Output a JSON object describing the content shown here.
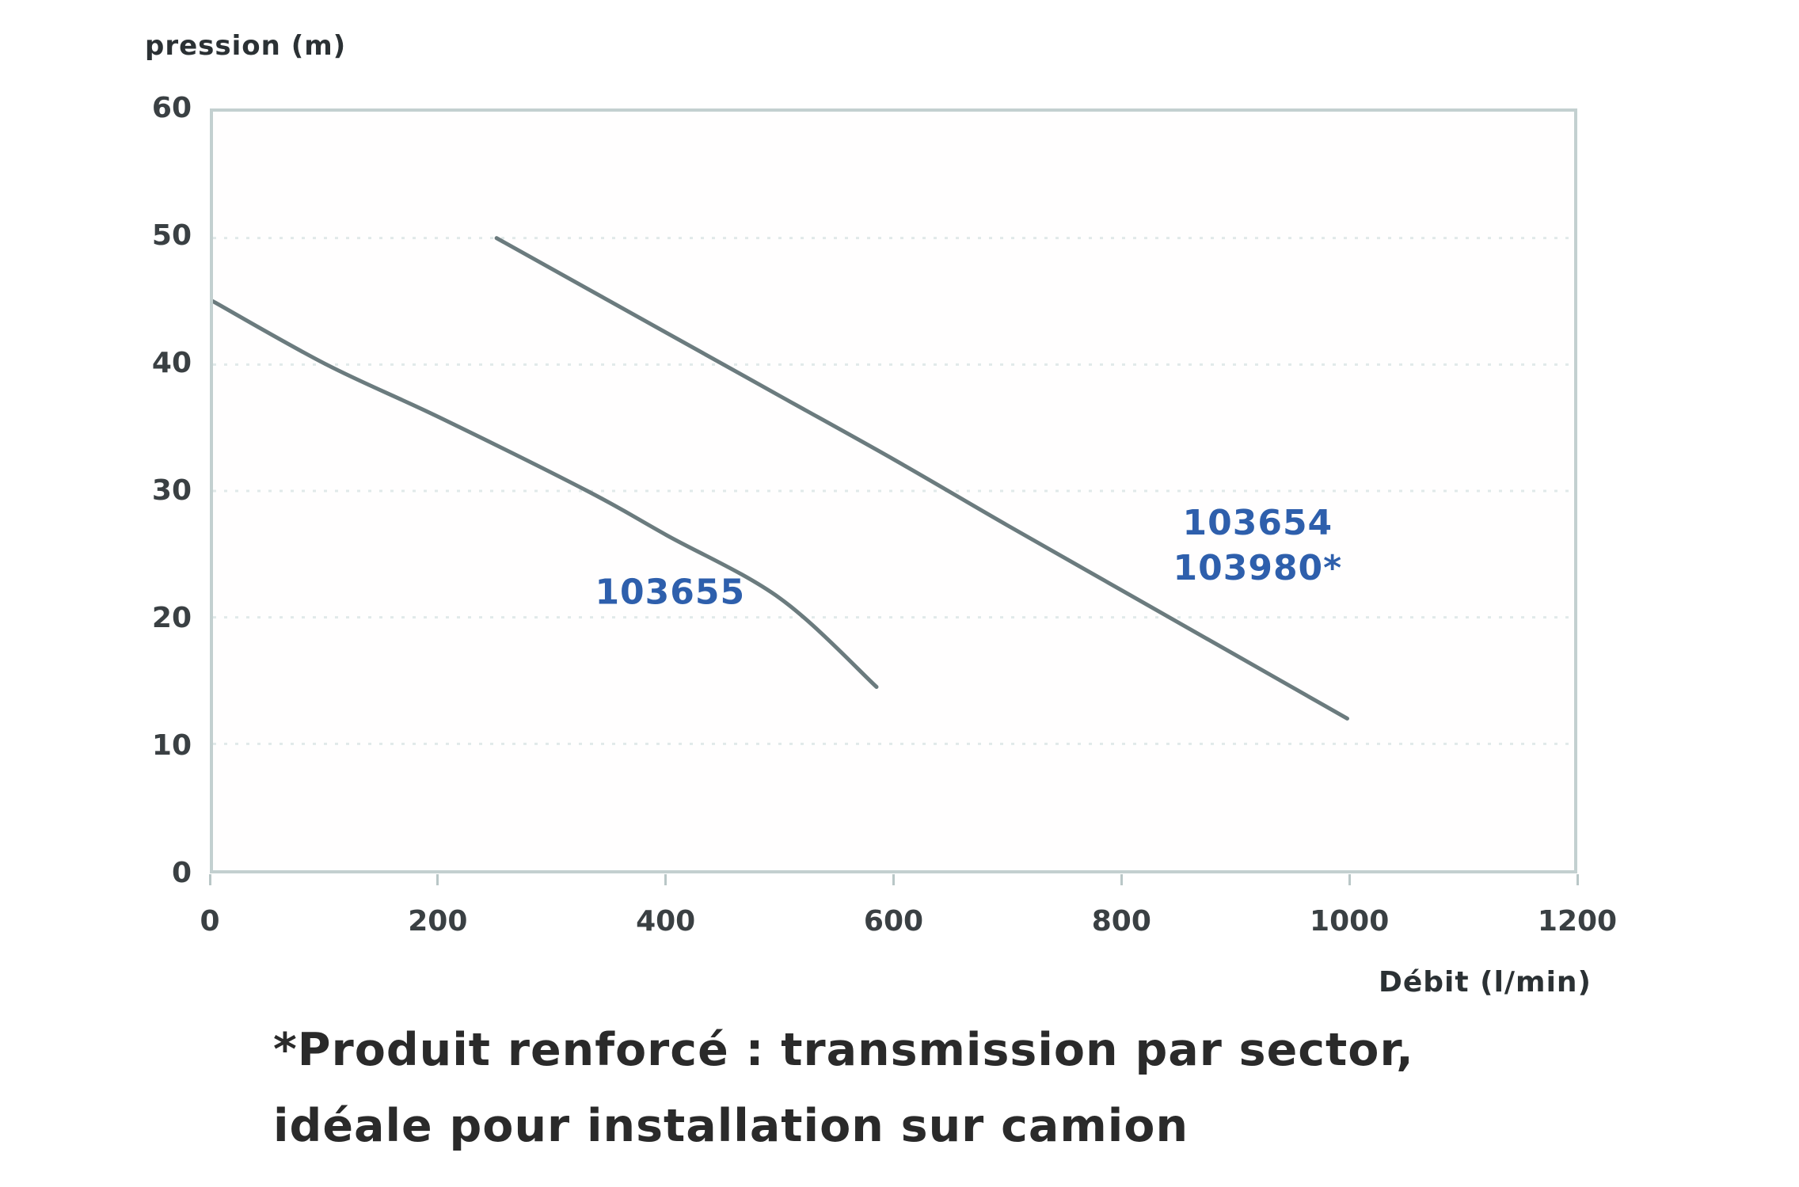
{
  "chart_data": {
    "type": "line",
    "title": "",
    "ylabel": "pression (m)",
    "xlabel": "Débit (l/min)",
    "xlim": [
      0,
      1200
    ],
    "ylim": [
      0,
      60
    ],
    "xticks": [
      0,
      200,
      400,
      600,
      800,
      1000,
      1200
    ],
    "yticks": [
      0,
      10,
      20,
      30,
      40,
      50,
      60
    ],
    "grid": "horizontal dotted lines at each y tick, no vertical gridlines",
    "legend_position": "inline annotations inside plot",
    "series": [
      {
        "name": "103655",
        "color": "#6b7b7e",
        "points": [
          [
            0,
            45
          ],
          [
            100,
            40
          ],
          [
            200,
            35.8
          ],
          [
            330,
            30
          ],
          [
            400,
            26.5
          ],
          [
            500,
            21.5
          ],
          [
            585,
            14.5
          ]
        ]
      },
      {
        "name": "103654 / 103980*",
        "color": "#6b7b7e",
        "points": [
          [
            250,
            50
          ],
          [
            400,
            42.5
          ],
          [
            500,
            37.5
          ],
          [
            600,
            32.5
          ],
          [
            700,
            27.3
          ],
          [
            800,
            22.2
          ],
          [
            900,
            17.1
          ],
          [
            1000,
            12
          ]
        ]
      }
    ],
    "annotations": [
      {
        "lines": [
          "103655"
        ],
        "x": 403,
        "y": 22,
        "color": "#2e5fac"
      },
      {
        "lines": [
          "103654",
          "103980*"
        ],
        "x": 921,
        "y": 25.7,
        "color": "#2e5fac"
      }
    ]
  },
  "footnote": {
    "line1": "*Produit renforcé : transmission par sector,",
    "line2": "idéale pour installation sur camion"
  },
  "colors": {
    "curve": "#6b7b7e",
    "annotation_blue": "#2e5fac",
    "grid": "#e1e9e9",
    "axis_border": "#c3d0d0",
    "tick_mark": "#b9c7c7",
    "tick_text": "#3a4043",
    "footnote_text": "#2a2a2a"
  }
}
